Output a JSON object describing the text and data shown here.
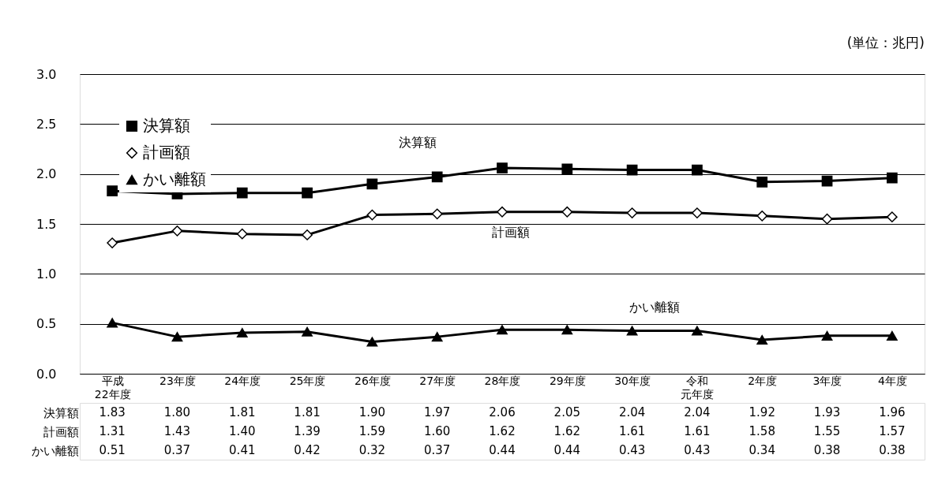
{
  "chart_data": {
    "type": "line",
    "categories": [
      "平成22年度",
      "23年度",
      "24年度",
      "25年度",
      "26年度",
      "27年度",
      "28年度",
      "29年度",
      "30年度",
      "令和元年度",
      "2年度",
      "3年度",
      "4年度"
    ],
    "series": [
      {
        "name": "決算額",
        "color": "#000000",
        "marker": "square",
        "values": [
          1.83,
          1.8,
          1.81,
          1.81,
          1.9,
          1.97,
          2.06,
          2.05,
          2.04,
          2.04,
          1.92,
          1.93,
          1.96
        ],
        "value_labels": [
          "1.83",
          "1.80",
          "1.81",
          "1.81",
          "1.90",
          "1.97",
          "2.06",
          "2.05",
          "2.04",
          "2.04",
          "1.92",
          "1.93",
          "1.96"
        ]
      },
      {
        "name": "計画額",
        "color": "#000000",
        "marker": "diamond",
        "values": [
          1.31,
          1.43,
          1.4,
          1.39,
          1.59,
          1.6,
          1.62,
          1.62,
          1.61,
          1.61,
          1.58,
          1.55,
          1.57
        ],
        "value_labels": [
          "1.31",
          "1.43",
          "1.40",
          "1.39",
          "1.59",
          "1.60",
          "1.62",
          "1.62",
          "1.61",
          "1.61",
          "1.58",
          "1.55",
          "1.57"
        ]
      },
      {
        "name": "かい離額",
        "color": "#000000",
        "marker": "triangle",
        "values": [
          0.51,
          0.37,
          0.41,
          0.42,
          0.32,
          0.37,
          0.44,
          0.44,
          0.43,
          0.43,
          0.34,
          0.38,
          0.38
        ],
        "value_labels": [
          "0.51",
          "0.37",
          "0.41",
          "0.42",
          "0.32",
          "0.37",
          "0.44",
          "0.44",
          "0.43",
          "0.43",
          "0.34",
          "0.38",
          "0.38"
        ]
      }
    ],
    "ylim": [
      0,
      3
    ],
    "yticks": [
      {
        "value": 0,
        "label": "0.0"
      },
      {
        "value": 0.5,
        "label": "0.5"
      },
      {
        "value": 1,
        "label": "1.0"
      },
      {
        "value": 1.5,
        "label": "1.5"
      },
      {
        "value": 2,
        "label": "2.0"
      },
      {
        "value": 2.5,
        "label": "2.5"
      },
      {
        "value": 3,
        "label": "3.0"
      }
    ],
    "grid": "y",
    "legend": "top left",
    "line_style": "solid",
    "annotations": [
      "(単位：兆円)",
      "決算額",
      "計画額",
      "かい離額"
    ]
  }
}
